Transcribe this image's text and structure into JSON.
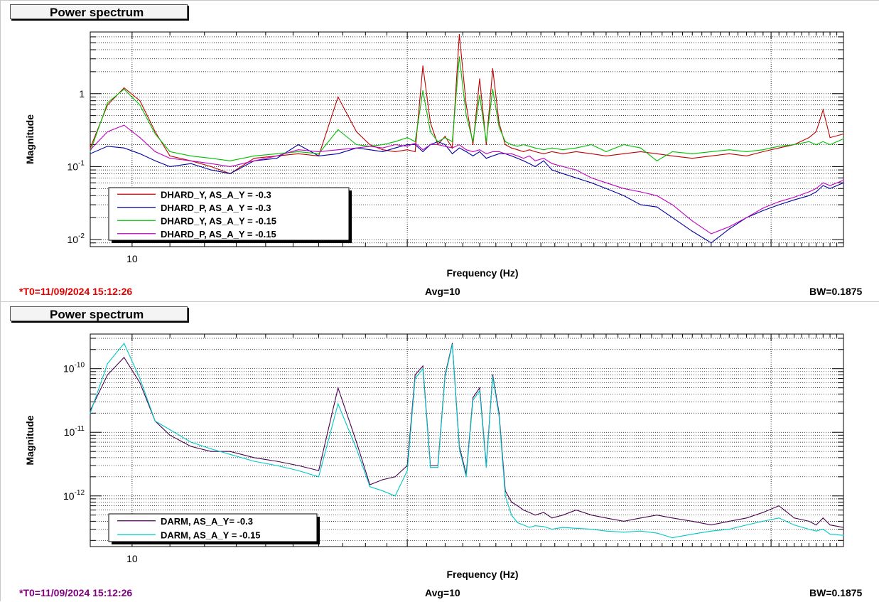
{
  "panels": [
    {
      "title": "Power spectrum",
      "t0": "*T0=11/09/2024 15:12:26",
      "t0_color": "#e00000",
      "avg": "Avg=10",
      "bw": "BW=0.1875",
      "chart_data": {
        "type": "line",
        "xlabel": "Frequency (Hz)",
        "ylabel": "Magnitude",
        "xscale": "log",
        "yscale": "log",
        "xlim": [
          9,
          60
        ],
        "ylim": [
          0.008,
          7
        ],
        "x_tick_labels": [
          "10"
        ],
        "y_ticks": [
          {
            "value": 0.01,
            "base": "10",
            "exp": "-2",
            "plain": ""
          },
          {
            "value": 0.1,
            "base": "10",
            "exp": "-1",
            "plain": ""
          },
          {
            "value": 1,
            "base": "",
            "exp": "",
            "plain": "1"
          }
        ],
        "grid": true,
        "legend_position": "bottom-left",
        "x": [
          9.0,
          9.4,
          9.8,
          10.2,
          10.6,
          11.0,
          11.6,
          12.2,
          12.8,
          13.6,
          14.4,
          15.2,
          16.0,
          16.8,
          17.6,
          18.2,
          18.8,
          19.4,
          20.0,
          20.4,
          20.8,
          21.2,
          21.6,
          22.0,
          22.4,
          22.8,
          23.2,
          23.6,
          24.0,
          24.4,
          24.8,
          25.2,
          25.6,
          26.0,
          26.4,
          26.8,
          27.2,
          27.6,
          28.2,
          28.8,
          29.6,
          30.6,
          31.8,
          33.0,
          34.5,
          36.0,
          37.5,
          39.0,
          41.0,
          43.0,
          45.0,
          47.0,
          49.0,
          51.0,
          53.0,
          55.0,
          56.0,
          57.0,
          58.0,
          60.0
        ],
        "series": [
          {
            "name": "DHARD_Y, AS_A_Y = -0.3",
            "color": "#c00000",
            "values": [
              0.18,
              0.7,
              1.2,
              0.8,
              0.3,
              0.14,
              0.12,
              0.1,
              0.08,
              0.13,
              0.14,
              0.15,
              0.14,
              0.9,
              0.3,
              0.2,
              0.17,
              0.16,
              0.17,
              0.16,
              2.4,
              0.4,
              0.2,
              0.26,
              0.18,
              6.5,
              0.7,
              0.2,
              1.6,
              0.2,
              2.2,
              0.4,
              0.2,
              0.18,
              0.17,
              0.16,
              0.17,
              0.16,
              0.15,
              0.16,
              0.15,
              0.16,
              0.15,
              0.14,
              0.15,
              0.16,
              0.15,
              0.14,
              0.13,
              0.14,
              0.15,
              0.14,
              0.16,
              0.18,
              0.2,
              0.25,
              0.3,
              0.6,
              0.25,
              0.28
            ]
          },
          {
            "name": "DHARD_P, AS_A_Y = -0.3",
            "color": "#0000a0",
            "values": [
              0.15,
              0.19,
              0.18,
              0.15,
              0.12,
              0.1,
              0.11,
              0.09,
              0.08,
              0.12,
              0.13,
              0.2,
              0.14,
              0.15,
              0.18,
              0.17,
              0.16,
              0.18,
              0.2,
              0.2,
              0.16,
              0.2,
              0.22,
              0.2,
              0.15,
              0.18,
              0.16,
              0.14,
              0.16,
              0.13,
              0.14,
              0.15,
              0.15,
              0.14,
              0.13,
              0.12,
              0.11,
              0.1,
              0.12,
              0.09,
              0.08,
              0.07,
              0.06,
              0.05,
              0.04,
              0.03,
              0.028,
              0.02,
              0.013,
              0.009,
              0.014,
              0.02,
              0.025,
              0.03,
              0.035,
              0.04,
              0.045,
              0.055,
              0.05,
              0.06
            ]
          },
          {
            "name": "DHARD_Y, AS_A_Y = -0.15",
            "color": "#00c000",
            "values": [
              0.16,
              0.75,
              1.15,
              0.7,
              0.28,
              0.16,
              0.14,
              0.13,
              0.12,
              0.14,
              0.15,
              0.16,
              0.15,
              0.32,
              0.2,
              0.19,
              0.2,
              0.22,
              0.25,
              0.22,
              1.1,
              0.3,
              0.22,
              0.25,
              0.22,
              3.2,
              0.5,
              0.22,
              0.95,
              0.22,
              1.15,
              0.35,
              0.22,
              0.2,
              0.19,
              0.2,
              0.19,
              0.18,
              0.17,
              0.18,
              0.17,
              0.18,
              0.2,
              0.16,
              0.2,
              0.18,
              0.12,
              0.16,
              0.15,
              0.16,
              0.17,
              0.16,
              0.17,
              0.19,
              0.2,
              0.22,
              0.2,
              0.22,
              0.2,
              0.24
            ]
          },
          {
            "name": "DHARD_P, AS_A_Y = -0.15",
            "color": "#c000c0",
            "values": [
              0.17,
              0.3,
              0.37,
              0.25,
              0.16,
              0.13,
              0.12,
              0.11,
              0.1,
              0.12,
              0.14,
              0.17,
              0.16,
              0.17,
              0.18,
              0.19,
              0.18,
              0.2,
              0.19,
              0.21,
              0.17,
              0.2,
              0.2,
              0.19,
              0.18,
              0.2,
              0.17,
              0.16,
              0.17,
              0.15,
              0.16,
              0.16,
              0.15,
              0.15,
              0.14,
              0.13,
              0.14,
              0.12,
              0.13,
              0.11,
              0.1,
              0.09,
              0.07,
              0.06,
              0.05,
              0.045,
              0.04,
              0.03,
              0.018,
              0.012,
              0.015,
              0.02,
              0.027,
              0.033,
              0.038,
              0.045,
              0.05,
              0.06,
              0.055,
              0.065
            ]
          }
        ]
      }
    },
    {
      "title": "Power spectrum",
      "t0": "*T0=11/09/2024 15:12:26",
      "t0_color": "#800080",
      "avg": "Avg=10",
      "bw": "BW=0.1875",
      "chart_data": {
        "type": "line",
        "xlabel": "Frequency (Hz)",
        "ylabel": "Magnitude",
        "xscale": "log",
        "yscale": "log",
        "xlim": [
          9,
          60
        ],
        "ylim": [
          1.6e-13,
          3.5e-10
        ],
        "x_tick_labels": [
          "10"
        ],
        "y_ticks": [
          {
            "value": 1e-12,
            "base": "10",
            "exp": "-12",
            "plain": ""
          },
          {
            "value": 1e-11,
            "base": "10",
            "exp": "-11",
            "plain": ""
          },
          {
            "value": 1e-10,
            "base": "10",
            "exp": "-10",
            "plain": ""
          }
        ],
        "grid": true,
        "legend_position": "bottom-left",
        "x": [
          9.0,
          9.4,
          9.8,
          10.2,
          10.6,
          11.0,
          11.6,
          12.2,
          12.8,
          13.6,
          14.4,
          15.2,
          16.0,
          16.8,
          17.6,
          18.2,
          18.8,
          19.4,
          20.0,
          20.4,
          20.8,
          21.2,
          21.6,
          22.0,
          22.4,
          22.8,
          23.2,
          23.6,
          24.0,
          24.4,
          24.8,
          25.2,
          25.6,
          26.0,
          26.4,
          26.8,
          27.2,
          27.6,
          28.2,
          28.8,
          29.6,
          30.6,
          31.8,
          33.0,
          34.5,
          36.0,
          37.5,
          39.0,
          41.0,
          43.0,
          45.0,
          47.0,
          49.0,
          51.0,
          53.0,
          55.0,
          56.0,
          57.0,
          58.0,
          60.0
        ],
        "series": [
          {
            "name": "DARM, AS_A_Y= -0.3",
            "color": "#4b0050",
            "values": [
              2.2e-11,
              8e-11,
              1.5e-10,
              6e-11,
              1.5e-11,
              9e-12,
              6e-12,
              5e-12,
              5e-12,
              4e-12,
              3.5e-12,
              3e-12,
              2.5e-12,
              5e-11,
              7e-12,
              1.5e-12,
              1.8e-12,
              2e-12,
              3e-12,
              8e-11,
              1.1e-10,
              3e-12,
              3e-12,
              8e-11,
              2.5e-10,
              6e-12,
              2.2e-12,
              3.5e-11,
              5e-11,
              3e-12,
              8e-11,
              2e-11,
              1.2e-12,
              8e-13,
              7e-13,
              6e-13,
              5.5e-13,
              5e-13,
              5.5e-13,
              4.5e-13,
              5e-13,
              6e-13,
              5e-13,
              4.5e-13,
              4e-13,
              4.5e-13,
              5e-13,
              4.5e-13,
              4e-13,
              3.5e-13,
              4e-13,
              4.5e-13,
              5.5e-13,
              7e-13,
              4.5e-13,
              4e-13,
              3.5e-13,
              4.5e-13,
              3.5e-13,
              3.2e-13
            ]
          },
          {
            "name": "DARM, AS_A_Y = -0.15",
            "color": "#00c8c8",
            "values": [
              2e-11,
              1.2e-10,
              2.5e-10,
              7e-11,
              1.5e-11,
              1.1e-11,
              7e-12,
              5.5e-12,
              4.5e-12,
              3.5e-12,
              3e-12,
              2.5e-12,
              2e-12,
              2.8e-11,
              5.5e-12,
              1.4e-12,
              1.2e-12,
              1e-12,
              2.5e-12,
              7e-11,
              1e-10,
              2.8e-12,
              2.8e-12,
              7.5e-11,
              2.4e-10,
              5.5e-12,
              2e-12,
              3.2e-11,
              4.5e-11,
              2.8e-12,
              7.5e-11,
              1.8e-11,
              1e-12,
              5e-13,
              3.8e-13,
              3.5e-13,
              3.2e-13,
              3.4e-13,
              3.3e-13,
              3e-13,
              3.2e-13,
              3.1e-13,
              3e-13,
              2.8e-13,
              2.7e-13,
              2.8e-13,
              2.6e-13,
              2.2e-13,
              2.5e-13,
              2.8e-13,
              3e-13,
              3.5e-13,
              4e-13,
              4.5e-13,
              3.5e-13,
              3e-13,
              2.8e-13,
              3e-13,
              2.5e-13,
              2.4e-13
            ]
          }
        ]
      }
    }
  ]
}
